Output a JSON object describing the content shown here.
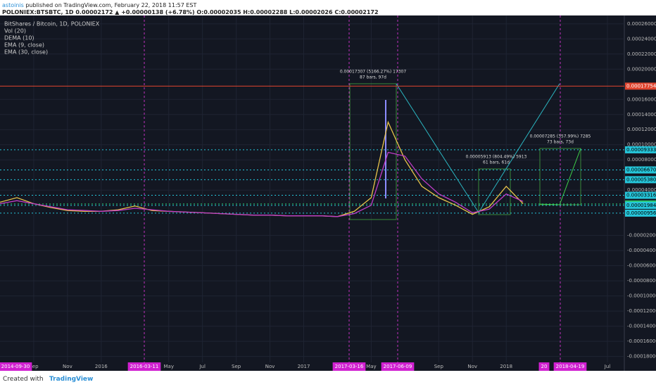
{
  "header": {
    "publisher": "astoinis",
    "published": "published on TradingView.com, February 22, 2018 11:57 EST",
    "quote": "POLONIEX:BTSBTC, 1D 0.00002172 ▲ +0.00000138 (+6.78%) O:0.00002035 H:0.00002288 L:0.00002026 C:0.00002172"
  },
  "footer": {
    "created": "Created with",
    "brand": "TradingView"
  },
  "chart_data": {
    "type": "line",
    "title": "BitShares / Bitcoin, 1D, POLONIEX",
    "indicators": [
      "Vol (20)",
      "DEMA (10)"
    ],
    "x": [
      "2015-07",
      "2015-08",
      "2015-09",
      "2015-10",
      "2015-11",
      "2015-12",
      "2016-01",
      "2016-02",
      "2016-03",
      "2016-04",
      "2016-05",
      "2016-06",
      "2016-07",
      "2016-08",
      "2016-09",
      "2016-10",
      "2016-11",
      "2016-12",
      "2017-01",
      "2017-02",
      "2017-03",
      "2017-04",
      "2017-05",
      "2017-06",
      "2017-07",
      "2017-08",
      "2017-09",
      "2017-10",
      "2017-11",
      "2017-12",
      "2018-01",
      "2018-02"
    ],
    "series": [
      {
        "name": "EMA (9, close)",
        "color": "#e8c34a",
        "values": [
          2.4e-05,
          3e-05,
          2.2e-05,
          1.7e-05,
          1.3e-05,
          1.2e-05,
          1.2e-05,
          1.4e-05,
          1.9e-05,
          1.3e-05,
          1.2e-05,
          1.1e-05,
          1e-05,
          9e-06,
          8e-06,
          7e-06,
          7e-06,
          6e-06,
          6e-06,
          6e-06,
          5e-06,
          1.2e-05,
          3e-05,
          0.00013,
          8e-05,
          4.5e-05,
          3e-05,
          2e-05,
          8e-06,
          1.8e-05,
          4.5e-05,
          2.2e-05
        ]
      },
      {
        "name": "EMA (30, close)",
        "color": "#c03cc8",
        "values": [
          2.2e-05,
          2.6e-05,
          2.2e-05,
          1.8e-05,
          1.4e-05,
          1.3e-05,
          1.2e-05,
          1.3e-05,
          1.6e-05,
          1.4e-05,
          1.2e-05,
          1.1e-05,
          1e-05,
          9e-06,
          8e-06,
          7e-06,
          7e-06,
          6e-06,
          6e-06,
          6e-06,
          5e-06,
          9e-06,
          2e-05,
          9e-05,
          8.5e-05,
          5.5e-05,
          3.5e-05,
          2.4e-05,
          1e-05,
          1.5e-05,
          3.5e-05,
          2.5e-05
        ]
      }
    ],
    "xlim": [
      "2015-07",
      "2018-08"
    ],
    "xticks": [
      {
        "value": "2015-09",
        "label": "Sep"
      },
      {
        "value": "2015-11",
        "label": "Nov"
      },
      {
        "value": "2016-01",
        "label": "2016"
      },
      {
        "value": "2016-05",
        "label": "May"
      },
      {
        "value": "2016-07",
        "label": "Jul"
      },
      {
        "value": "2016-09",
        "label": "Sep"
      },
      {
        "value": "2016-11",
        "label": "Nov"
      },
      {
        "value": "2017-01",
        "label": "2017"
      },
      {
        "value": "2017-05",
        "label": "May"
      },
      {
        "value": "2017-09",
        "label": "Sep"
      },
      {
        "value": "2017-11",
        "label": "Nov"
      },
      {
        "value": "2018-01",
        "label": "2018"
      },
      {
        "value": "2018-07",
        "label": "Jul"
      }
    ],
    "date_markers": [
      "2014-09-30",
      "2016-03-11",
      "2017-03-16",
      "2017-06-09",
      "20",
      "2018-04-19"
    ],
    "ylim": [
      -0.000199,
      0.000271
    ],
    "yticks": [
      {
        "value": 0.00026,
        "label": "0.00026000"
      },
      {
        "value": 0.00024,
        "label": "0.00024000"
      },
      {
        "value": 0.00022,
        "label": "0.00022000"
      },
      {
        "value": 0.0002,
        "label": "0.00020000"
      },
      {
        "value": 0.00016,
        "label": "0.00016000"
      },
      {
        "value": 0.00014,
        "label": "0.00014000"
      },
      {
        "value": 0.00012,
        "label": "0.00012000"
      },
      {
        "value": 0.0001,
        "label": "0.00010000"
      },
      {
        "value": 8e-05,
        "label": "0.00008000"
      },
      {
        "value": 4e-05,
        "label": "0.00004000"
      },
      {
        "value": -2e-05,
        "label": "-0.00002000"
      },
      {
        "value": -4e-05,
        "label": "-0.00004000"
      },
      {
        "value": -6e-05,
        "label": "-0.00006000"
      },
      {
        "value": -8e-05,
        "label": "-0.00008000"
      },
      {
        "value": -0.0001,
        "label": "-0.00010000"
      },
      {
        "value": -0.00012,
        "label": "-0.00012000"
      },
      {
        "value": -0.00014,
        "label": "-0.00014000"
      },
      {
        "value": -0.00016,
        "label": "-0.00016000"
      },
      {
        "value": -0.00018,
        "label": "-0.00018000"
      }
    ],
    "levels": [
      {
        "value": 0.00017754,
        "label": "0.00017754",
        "color": "#e0452f"
      },
      {
        "value": 9.333e-05,
        "label": "0.00009333",
        "color": "#26c6da"
      },
      {
        "value": 6.67e-05,
        "label": "0.00006670",
        "color": "#26c6da"
      },
      {
        "value": 5.38e-05,
        "label": "0.00005380",
        "color": "#26c6da"
      },
      {
        "value": 3.316e-05,
        "label": "0.00003316",
        "color": "#26c6da"
      },
      {
        "value": 2.172e-05,
        "label": "0.00002172",
        "color": "#2ecc71"
      },
      {
        "value": 1.984e-05,
        "label": "0.00001984",
        "color": "#26c6da"
      },
      {
        "value": 9.56e-06,
        "label": "0.00000956",
        "color": "#26c6da"
      }
    ],
    "annotations": [
      "0.00017307 (5166.27%) 17307",
      "87 bars, 97d",
      "0.00005913 (804.49%) 5913",
      "61 bars, 61d",
      "0.00007285 (357.99%) 7285",
      "73 bars, 73d"
    ],
    "grid": true
  }
}
